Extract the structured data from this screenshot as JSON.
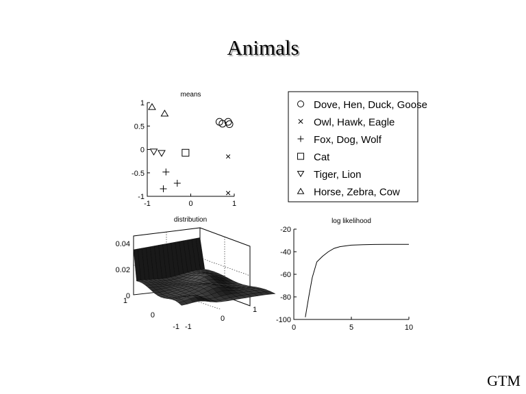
{
  "slide": {
    "title": "Animals",
    "footer": "GTM"
  },
  "chart_data": [
    {
      "type": "scatter",
      "title": "means",
      "xlim": [
        -1,
        1
      ],
      "ylim": [
        -1,
        1
      ],
      "x_ticks": [
        -1,
        0,
        1
      ],
      "y_ticks": [
        1,
        0.5,
        0,
        -0.5,
        -1
      ],
      "y_tick_labels": [
        "1",
        "0.5",
        "0",
        "-0.5",
        "-1"
      ],
      "grid": false,
      "legend_position": "right",
      "series": [
        {
          "name": "Dove, Hen, Duck, Goose",
          "marker": "circle",
          "points": [
            [
              0.66,
              0.59
            ],
            [
              0.73,
              0.55
            ],
            [
              0.86,
              0.59
            ],
            [
              0.89,
              0.54
            ]
          ]
        },
        {
          "name": "Owl, Hawk, Eagle",
          "marker": "x",
          "points": [
            [
              0.86,
              -0.15
            ],
            [
              0.86,
              -0.93
            ]
          ]
        },
        {
          "name": "Fox, Dog, Wolf",
          "marker": "plus",
          "points": [
            [
              -0.57,
              -0.48
            ],
            [
              -0.31,
              -0.72
            ],
            [
              -0.63,
              -0.84
            ]
          ]
        },
        {
          "name": "Cat",
          "marker": "square",
          "points": [
            [
              -0.12,
              -0.07
            ]
          ]
        },
        {
          "name": "Tiger, Lion",
          "marker": "triangle-down",
          "points": [
            [
              -0.85,
              -0.05
            ],
            [
              -0.67,
              -0.08
            ]
          ]
        },
        {
          "name": "Horse, Zebra, Cow",
          "marker": "triangle-up",
          "points": [
            [
              -0.89,
              0.91
            ],
            [
              -0.6,
              0.77
            ]
          ]
        }
      ]
    },
    {
      "type": "surface",
      "title": "distribution",
      "z_ticks": [
        0.04,
        0.02,
        0
      ],
      "z_tick_labels": [
        "0.04",
        "0.02",
        "0"
      ],
      "x_ticks": [
        -1,
        0,
        1
      ],
      "y_ticks": [
        1,
        0,
        -1
      ]
    },
    {
      "type": "line",
      "title": "log likelihood",
      "xlim": [
        0,
        10
      ],
      "ylim": [
        -100,
        -20
      ],
      "x_ticks": [
        0,
        5,
        10
      ],
      "y_ticks": [
        -20,
        -40,
        -60,
        -80,
        -100
      ],
      "grid": false,
      "series": [
        {
          "x": [
            1,
            1.3,
            1.6,
            2,
            2.5,
            3,
            3.5,
            4,
            5,
            6,
            7,
            8,
            9,
            10
          ],
          "y": [
            -98,
            -80,
            -63,
            -49,
            -44,
            -40,
            -37,
            -35.5,
            -34.2,
            -33.8,
            -33.6,
            -33.5,
            -33.5,
            -33.5
          ]
        }
      ]
    }
  ]
}
